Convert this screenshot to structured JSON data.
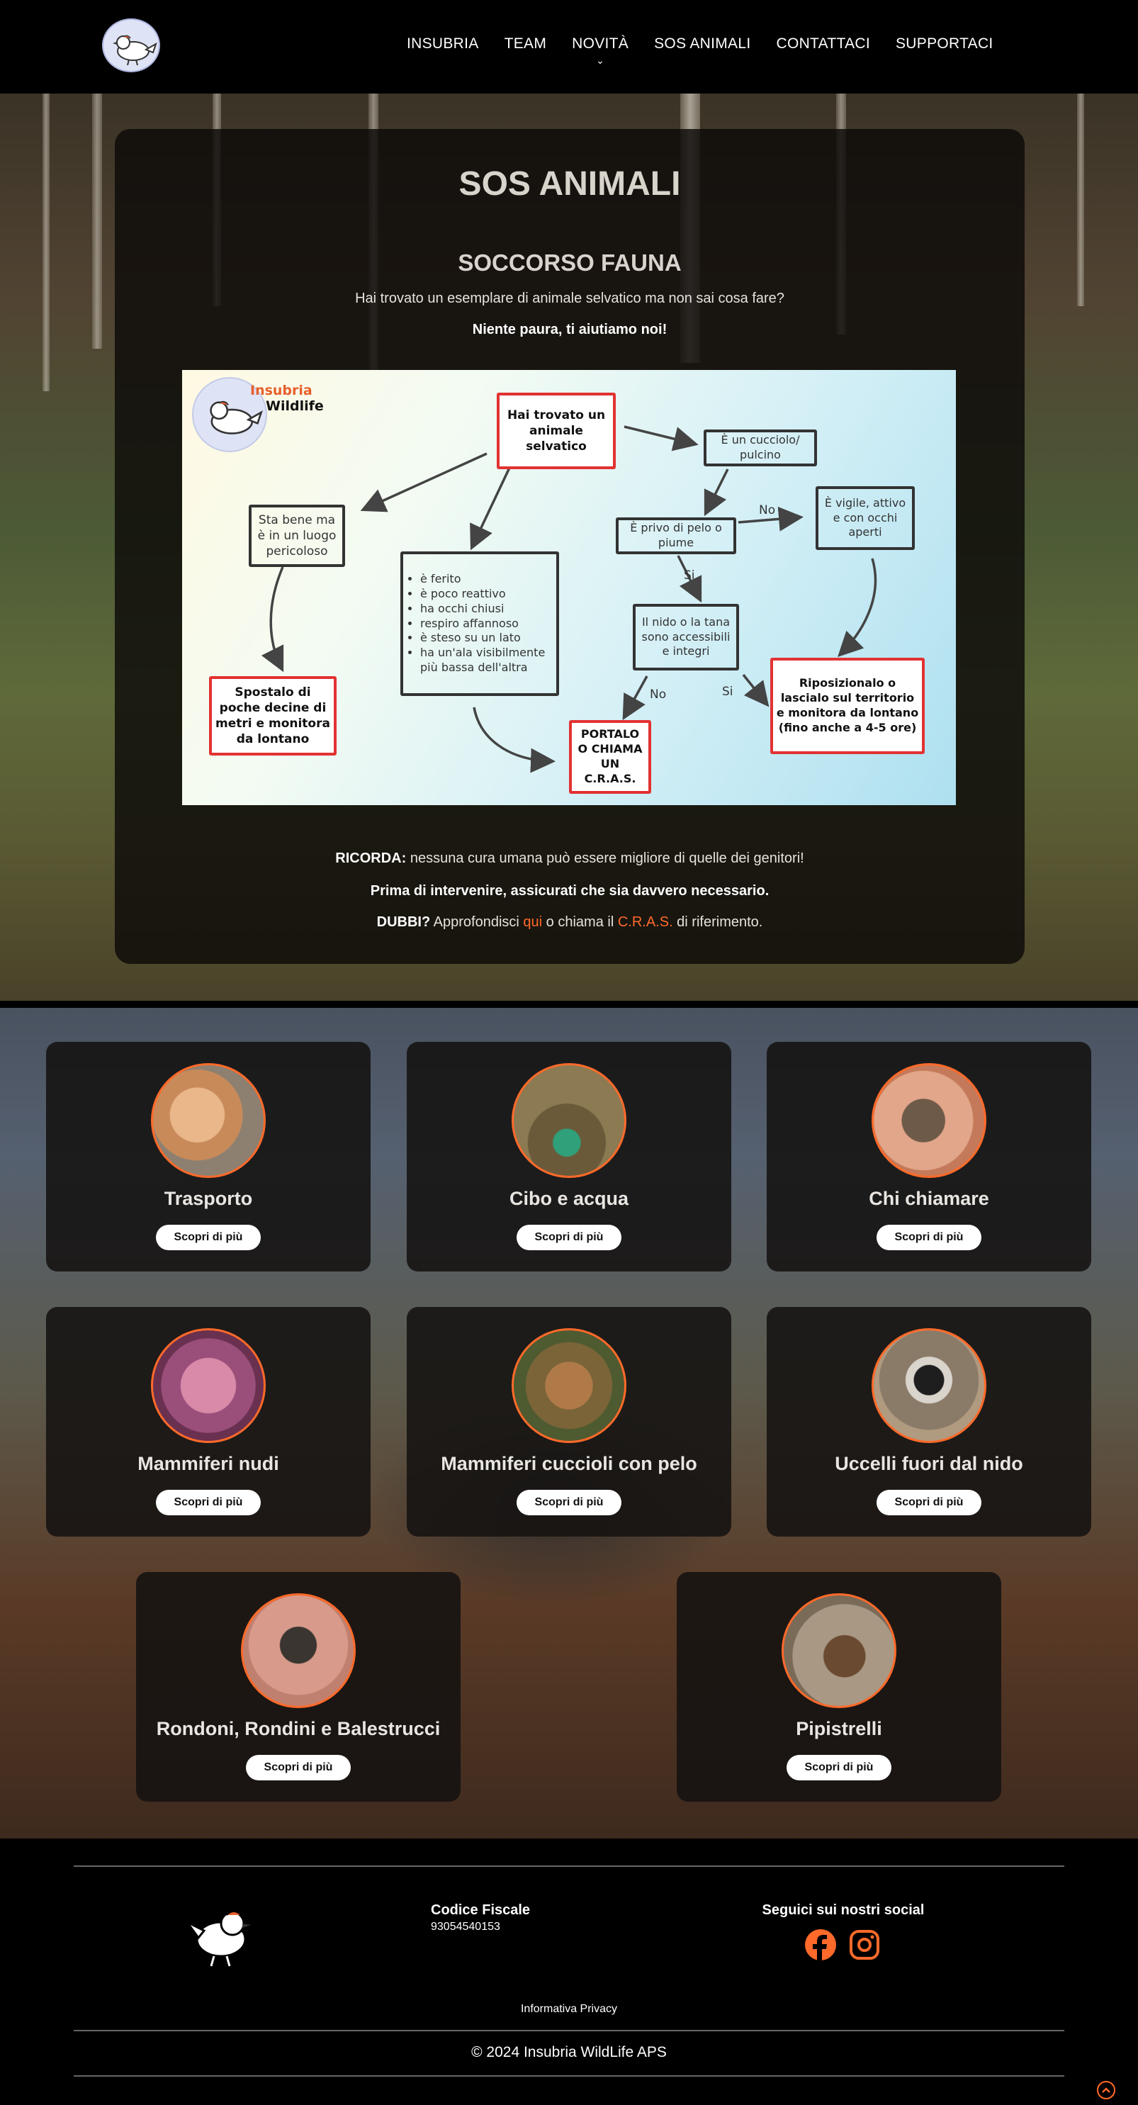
{
  "nav": {
    "items": [
      "INSUBRIA",
      "TEAM",
      "NOVITÀ",
      "SOS ANIMALI",
      "CONTATTACI",
      "SUPPORTACI"
    ]
  },
  "hero": {
    "title": "SOS ANIMALI",
    "subtitle": "SOCCORSO FAUNA",
    "line1": "Hai trovato un esemplare di animale selvatico ma non sai cosa fare?",
    "line2": "Niente paura, ti aiutiamo noi!"
  },
  "flowchart": {
    "logo_line1": "Insubria",
    "logo_line2": "Wildlife",
    "start": "Hai trovato un animale selvatico",
    "left_q": "Sta bene ma è in un luogo pericoloso",
    "left_action": "Spostalo di poche decine di metri e monitora da lontano",
    "symptoms": [
      "è ferito",
      "è poco reattivo",
      "ha occhi chiusi",
      "respiro affannoso",
      "è steso su un lato",
      "ha un'ala visibilmente più bassa dell'altra"
    ],
    "call": "PORTALO O CHIAMA UN C.R.A.S.",
    "cub": "È un cucciolo/ pulcino",
    "feathers": "È privo di pelo o piume",
    "alert": "È vigile, attivo e con occhi aperti",
    "nest": "Il nido o la tana sono accessibili e integri",
    "reposition": "Riposizionalo o lascialo sul territorio e monitora da lontano (fino anche a 4-5 ore)",
    "label_no1": "No",
    "label_si1": "Si",
    "label_no2": "No",
    "label_si2": "Si"
  },
  "notes": {
    "remember_label": "RICORDA:",
    "remember_text": " nessuna cura umana può essere migliore di quelle dei genitori!",
    "before": "Prima di intervenire, assicurati che sia davvero necessario.",
    "doubts_label": "DUBBI?",
    "doubts_text1": " Approfondisci ",
    "doubts_link1": "qui",
    "doubts_text2": " o chiama il ",
    "doubts_link2": "C.R.A.S.",
    "doubts_text3": " di riferimento."
  },
  "cards": [
    {
      "title": "Trasporto",
      "button": "Scopri di più"
    },
    {
      "title": "Cibo e acqua",
      "button": "Scopri di più"
    },
    {
      "title": "Chi chiamare",
      "button": "Scopri di più"
    },
    {
      "title": "Mammiferi nudi",
      "button": "Scopri di più"
    },
    {
      "title": "Mammiferi cuccioli con pelo",
      "button": "Scopri di più"
    },
    {
      "title": "Uccelli fuori dal nido",
      "button": "Scopri di più"
    },
    {
      "title": "Rondoni, Rondini e Balestrucci",
      "button": "Scopri di più"
    },
    {
      "title": "Pipistrelli",
      "button": "Scopri di più"
    }
  ],
  "footer": {
    "tax_label": "Codice Fiscale",
    "tax_value": "93054540153",
    "social_label": "Seguici sui nostri social",
    "privacy": "Informativa Privacy",
    "copyright": "© 2024 Insubria WildLife APS"
  },
  "colors": {
    "accent": "#ff6a2a",
    "flow_red": "#e23232"
  }
}
